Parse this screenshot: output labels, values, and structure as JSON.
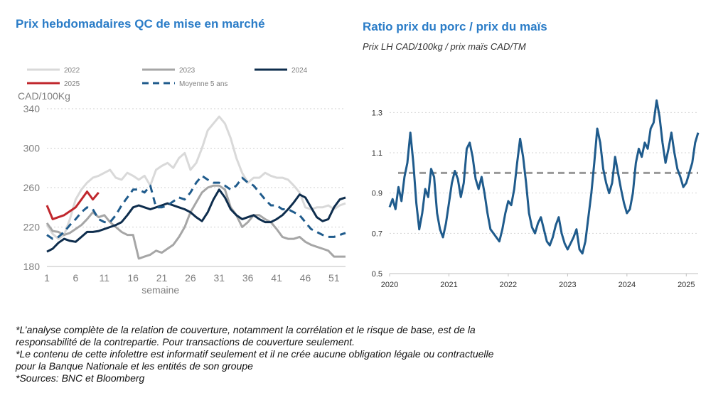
{
  "left_panel": {
    "title": "Prix hebdomadaires QC de mise en marché"
  },
  "right_panel": {
    "title": "Ratio prix du porc / prix du maïs",
    "subtitle": "Prix LH CAD/100kg / prix maïs CAD/TM"
  },
  "footnotes": {
    "line1": "*L’analyse complète de la relation de couverture, notamment la corrélation et le risque de base, est de la",
    "line2": "responsabilité de la contrepartie. Pour transactions de couverture seulement.",
    "line3": "*Le contenu de cette infolettre est informatif seulement et il ne crée aucune obligation légale ou contractuelle",
    "line4": "pour la Banque Nationale et les entités de son groupe",
    "line5": "*Sources: BNC et Bloomberg"
  },
  "chart_data": [
    {
      "type": "line",
      "title": "Prix hebdomadaires QC de mise en marché",
      "ylabel": "CAD/100Kg",
      "xlabel": "semaine",
      "ylim": [
        180,
        340
      ],
      "xlim": [
        1,
        53
      ],
      "yticks": [
        180,
        220,
        260,
        300,
        340
      ],
      "xticks": [
        1,
        6,
        11,
        16,
        21,
        26,
        31,
        36,
        41,
        46,
        51
      ],
      "grid": "horizontal dotted",
      "legend_position": "top",
      "series": [
        {
          "name": "2022",
          "color": "#d9d9d9",
          "dashed": false,
          "x": [
            1,
            2,
            3,
            4,
            5,
            6,
            7,
            8,
            9,
            10,
            11,
            12,
            13,
            14,
            15,
            16,
            17,
            18,
            19,
            20,
            21,
            22,
            23,
            24,
            25,
            26,
            27,
            28,
            29,
            30,
            31,
            32,
            33,
            34,
            35,
            36,
            37,
            38,
            39,
            40,
            41,
            42,
            43,
            44,
            45,
            46,
            47,
            48,
            49,
            50,
            51,
            52,
            53
          ],
          "values": [
            222,
            213,
            208,
            212,
            228,
            248,
            258,
            265,
            270,
            272,
            275,
            278,
            270,
            268,
            275,
            272,
            268,
            272,
            262,
            278,
            282,
            285,
            280,
            290,
            295,
            278,
            285,
            300,
            318,
            325,
            332,
            325,
            310,
            290,
            275,
            265,
            270,
            270,
            275,
            272,
            270,
            270,
            268,
            262,
            255,
            240,
            238,
            240,
            240,
            242,
            238,
            242,
            244
          ]
        },
        {
          "name": "2023",
          "color": "#a6a6a6",
          "dashed": false,
          "x": [
            1,
            2,
            3,
            4,
            5,
            6,
            7,
            8,
            9,
            10,
            11,
            12,
            13,
            14,
            15,
            16,
            17,
            18,
            19,
            20,
            21,
            22,
            23,
            24,
            25,
            26,
            27,
            28,
            29,
            30,
            31,
            32,
            33,
            34,
            35,
            36,
            37,
            38,
            39,
            40,
            41,
            42,
            43,
            44,
            45,
            46,
            47,
            48,
            49,
            50,
            51,
            52,
            53
          ],
          "values": [
            224,
            216,
            215,
            212,
            214,
            218,
            222,
            228,
            235,
            230,
            232,
            225,
            220,
            215,
            212,
            212,
            188,
            190,
            192,
            196,
            194,
            198,
            202,
            210,
            220,
            235,
            245,
            255,
            260,
            262,
            262,
            258,
            240,
            232,
            220,
            225,
            232,
            232,
            228,
            225,
            218,
            210,
            208,
            208,
            210,
            205,
            202,
            200,
            198,
            196,
            190,
            190,
            190
          ]
        },
        {
          "name": "2024",
          "color": "#0e2d4d",
          "dashed": false,
          "x": [
            1,
            2,
            3,
            4,
            5,
            6,
            7,
            8,
            9,
            10,
            11,
            12,
            13,
            14,
            15,
            16,
            17,
            18,
            19,
            20,
            21,
            22,
            23,
            24,
            25,
            26,
            27,
            28,
            29,
            30,
            31,
            32,
            33,
            34,
            35,
            36,
            37,
            38,
            39,
            40,
            41,
            42,
            43,
            44,
            45,
            46,
            47,
            48,
            49,
            50,
            51,
            52,
            53
          ],
          "values": [
            195,
            198,
            204,
            208,
            206,
            205,
            210,
            215,
            215,
            216,
            218,
            220,
            222,
            225,
            232,
            240,
            242,
            240,
            238,
            240,
            242,
            244,
            242,
            240,
            238,
            235,
            230,
            226,
            235,
            248,
            258,
            250,
            238,
            232,
            228,
            230,
            232,
            228,
            225,
            225,
            228,
            232,
            238,
            245,
            253,
            250,
            240,
            230,
            226,
            228,
            240,
            248,
            250
          ]
        },
        {
          "name": "2025",
          "color": "#c0272d",
          "dashed": false,
          "x": [
            1,
            2,
            3,
            4,
            5,
            6,
            7,
            8,
            9,
            10
          ],
          "values": [
            242,
            228,
            230,
            232,
            236,
            240,
            248,
            256,
            248,
            255
          ]
        },
        {
          "name": "Moyenne 5 ans",
          "color": "#1f5b8c",
          "dashed": true,
          "x": [
            1,
            2,
            3,
            4,
            5,
            6,
            7,
            8,
            9,
            10,
            11,
            12,
            13,
            14,
            15,
            16,
            17,
            18,
            19,
            20,
            21,
            22,
            23,
            24,
            25,
            26,
            27,
            28,
            29,
            30,
            31,
            32,
            33,
            34,
            35,
            36,
            37,
            38,
            39,
            40,
            41,
            42,
            43,
            44,
            45,
            46,
            47,
            48,
            49,
            50,
            51,
            52,
            53
          ],
          "values": [
            212,
            208,
            210,
            215,
            222,
            228,
            235,
            240,
            238,
            228,
            225,
            225,
            232,
            242,
            250,
            258,
            258,
            255,
            262,
            240,
            240,
            242,
            246,
            250,
            248,
            255,
            265,
            272,
            268,
            265,
            265,
            262,
            258,
            262,
            270,
            265,
            262,
            255,
            248,
            242,
            242,
            238,
            238,
            235,
            232,
            225,
            218,
            215,
            212,
            210,
            210,
            212,
            214
          ]
        }
      ]
    },
    {
      "type": "line",
      "title": "Ratio prix du porc / prix du maïs",
      "subtitle": "Prix LH CAD/100kg / prix maïs CAD/TM",
      "ylim": [
        0.5,
        1.4
      ],
      "yticks": [
        0.5,
        0.7,
        0.9,
        1.1,
        1.3
      ],
      "xlim": [
        2020.0,
        2025.2
      ],
      "xticks": [
        "2020",
        "2021",
        "2022",
        "2023",
        "2024",
        "2025"
      ],
      "grid": "horizontal dotted",
      "reference_line": {
        "value": 1.0,
        "style": "dashed",
        "color": "#999999"
      },
      "series": [
        {
          "name": "",
          "color": "#1f5b8c",
          "x": [
            2020.0,
            2020.05,
            2020.1,
            2020.15,
            2020.2,
            2020.25,
            2020.3,
            2020.35,
            2020.4,
            2020.45,
            2020.5,
            2020.55,
            2020.6,
            2020.65,
            2020.7,
            2020.75,
            2020.8,
            2020.85,
            2020.9,
            2020.95,
            2021.0,
            2021.05,
            2021.1,
            2021.15,
            2021.2,
            2021.25,
            2021.3,
            2021.35,
            2021.4,
            2021.45,
            2021.5,
            2021.55,
            2021.6,
            2021.65,
            2021.7,
            2021.75,
            2021.8,
            2021.85,
            2021.9,
            2021.95,
            2022.0,
            2022.05,
            2022.1,
            2022.15,
            2022.2,
            2022.25,
            2022.3,
            2022.35,
            2022.4,
            2022.45,
            2022.5,
            2022.55,
            2022.6,
            2022.65,
            2022.7,
            2022.75,
            2022.8,
            2022.85,
            2022.9,
            2022.95,
            2023.0,
            2023.05,
            2023.1,
            2023.15,
            2023.2,
            2023.25,
            2023.3,
            2023.35,
            2023.4,
            2023.45,
            2023.5,
            2023.55,
            2023.6,
            2023.65,
            2023.7,
            2023.75,
            2023.8,
            2023.85,
            2023.9,
            2023.95,
            2024.0,
            2024.05,
            2024.1,
            2024.15,
            2024.2,
            2024.25,
            2024.3,
            2024.35,
            2024.4,
            2024.45,
            2024.5,
            2024.55,
            2024.6,
            2024.65,
            2024.7,
            2024.75,
            2024.8,
            2024.85,
            2024.9,
            2024.95,
            2025.0,
            2025.05,
            2025.1,
            2025.15,
            2025.2
          ],
          "values": [
            0.83,
            0.87,
            0.82,
            0.93,
            0.86,
            0.98,
            1.05,
            1.2,
            1.05,
            0.85,
            0.72,
            0.8,
            0.92,
            0.88,
            1.02,
            0.98,
            0.8,
            0.72,
            0.68,
            0.75,
            0.85,
            0.95,
            1.01,
            0.97,
            0.88,
            0.95,
            1.12,
            1.15,
            1.08,
            0.97,
            0.92,
            0.98,
            0.9,
            0.8,
            0.72,
            0.7,
            0.68,
            0.66,
            0.72,
            0.8,
            0.86,
            0.84,
            0.92,
            1.05,
            1.17,
            1.08,
            0.95,
            0.8,
            0.73,
            0.7,
            0.75,
            0.78,
            0.72,
            0.66,
            0.64,
            0.68,
            0.74,
            0.78,
            0.7,
            0.65,
            0.62,
            0.65,
            0.68,
            0.72,
            0.62,
            0.6,
            0.66,
            0.78,
            0.9,
            1.05,
            1.22,
            1.15,
            1.02,
            0.95,
            0.9,
            0.95,
            1.08,
            1.0,
            0.92,
            0.85,
            0.8,
            0.82,
            0.9,
            1.05,
            1.12,
            1.08,
            1.15,
            1.12,
            1.22,
            1.25,
            1.36,
            1.28,
            1.15,
            1.05,
            1.12,
            1.2,
            1.1,
            1.02,
            0.98,
            0.93,
            0.95,
            1.0,
            1.05,
            1.15,
            1.2
          ]
        }
      ]
    }
  ]
}
